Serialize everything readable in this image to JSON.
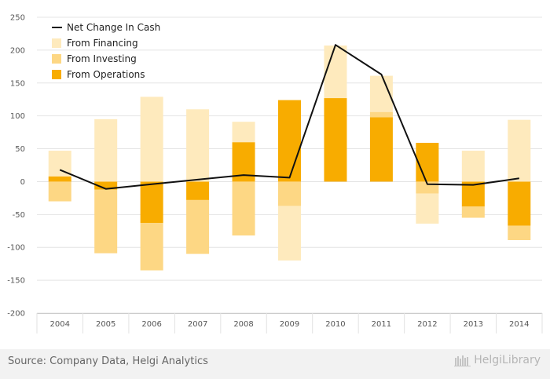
{
  "chart_data": {
    "type": "bar",
    "categories": [
      "2004",
      "2005",
      "2006",
      "2007",
      "2008",
      "2009",
      "2010",
      "2011",
      "2012",
      "2013",
      "2014"
    ],
    "ylim": [
      -200,
      250
    ],
    "yticks": [
      -200,
      -150,
      -100,
      -50,
      0,
      50,
      100,
      150,
      200,
      250
    ],
    "grid": true,
    "legend_position": "top-left",
    "series": [
      {
        "name": "From Operations",
        "kind": "bar",
        "color": "#f8ac00",
        "values": [
          8,
          -12,
          -63,
          -28,
          60,
          124,
          127,
          98,
          59,
          -38,
          -67
        ]
      },
      {
        "name": "From Investing",
        "kind": "bar",
        "color": "#fdd784",
        "values": [
          -30,
          -97,
          -72,
          -82,
          -82,
          -37,
          0,
          8,
          -18,
          -17,
          -22
        ]
      },
      {
        "name": "From Financing",
        "kind": "bar",
        "color": "#feeabd",
        "values": [
          39,
          95,
          129,
          110,
          31,
          -83,
          80,
          55,
          -46,
          47,
          94
        ]
      },
      {
        "name": "Net Change In Cash",
        "kind": "line",
        "color": "#111111",
        "values": [
          18,
          -11,
          -4,
          3,
          10,
          6,
          208,
          163,
          -4,
          -5,
          5
        ]
      }
    ]
  },
  "legend": {
    "items": [
      {
        "label": "Net Change In Cash",
        "color": "#111111",
        "kind": "line"
      },
      {
        "label": "From Financing",
        "color": "#feeabd",
        "kind": "box"
      },
      {
        "label": "From Investing",
        "color": "#fdd784",
        "kind": "box"
      },
      {
        "label": "From Operations",
        "color": "#f8ac00",
        "kind": "box"
      }
    ]
  },
  "footer": {
    "source": "Source: Company Data, Helgi Analytics",
    "logo_text": "HelgiLibrary"
  }
}
